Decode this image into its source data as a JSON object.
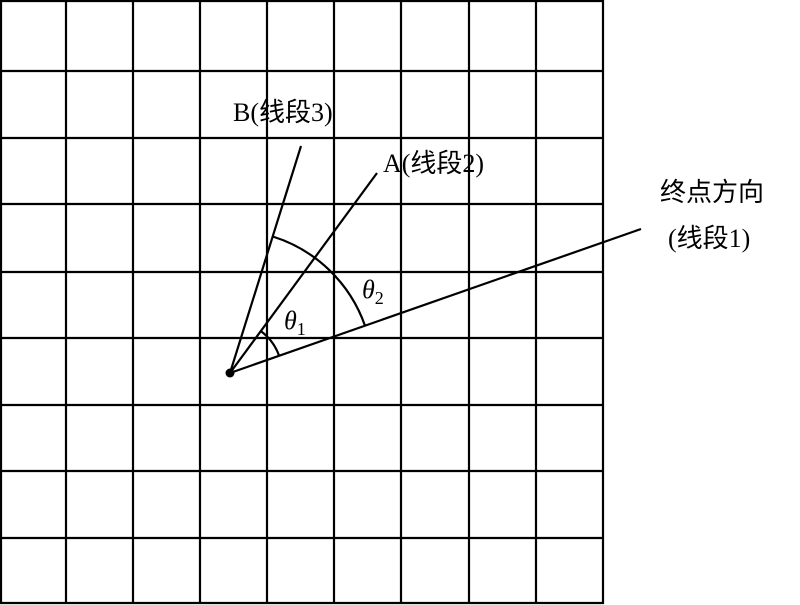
{
  "labels": {
    "segment3": "B(线段3)",
    "segment2": "A(线段2)",
    "end_direction": "终点方向",
    "segment1": "(线段1)",
    "theta1": "θ",
    "theta1_sub": "1",
    "theta2": "θ",
    "theta2_sub": "2"
  },
  "colors": {
    "line": "#000000",
    "background": "#ffffff"
  }
}
